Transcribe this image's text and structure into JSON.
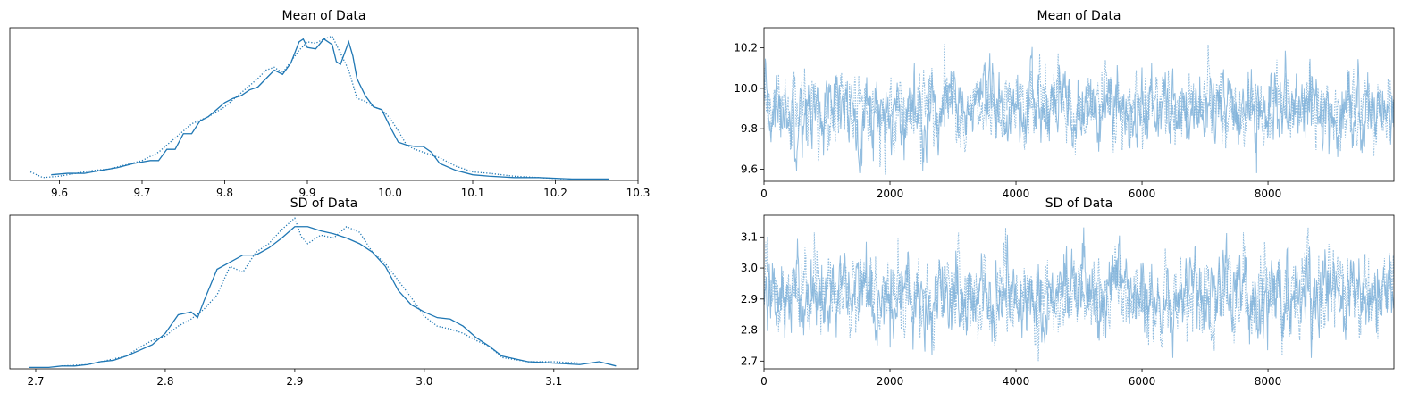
{
  "colors": {
    "line": "#1f77b4",
    "trace": "#7fb2d9",
    "axis": "#000000"
  },
  "chart_data": [
    {
      "id": "kde-mean",
      "type": "line",
      "title": "Mean of Data",
      "xlabel": "",
      "ylabel": "",
      "xlim": [
        9.54,
        10.3
      ],
      "ylim": [
        0,
        1.08
      ],
      "xticks": [
        9.6,
        9.7,
        9.8,
        9.9,
        10.0,
        10.1,
        10.2,
        10.3
      ],
      "xtick_labels": [
        "9.6",
        "9.7",
        "9.8",
        "9.9",
        "10.0",
        "10.1",
        "10.2",
        "10.3"
      ],
      "yticks_visible": false,
      "grid": false,
      "series": [
        {
          "style": "solid",
          "x": [
            9.59,
            9.61,
            9.63,
            9.65,
            9.67,
            9.69,
            9.71,
            9.72,
            9.73,
            9.74,
            9.75,
            9.76,
            9.77,
            9.78,
            9.79,
            9.8,
            9.81,
            9.82,
            9.83,
            9.84,
            9.85,
            9.86,
            9.87,
            9.88,
            9.89,
            9.895,
            9.9,
            9.91,
            9.92,
            9.93,
            9.935,
            9.94,
            9.95,
            9.955,
            9.96,
            9.97,
            9.98,
            9.99,
            10.0,
            10.01,
            10.02,
            10.03,
            10.04,
            10.05,
            10.06,
            10.08,
            10.1,
            10.12,
            10.15,
            10.18,
            10.22,
            10.265
          ],
          "y": [
            0.04,
            0.05,
            0.05,
            0.07,
            0.09,
            0.12,
            0.14,
            0.14,
            0.22,
            0.22,
            0.33,
            0.33,
            0.42,
            0.45,
            0.5,
            0.55,
            0.58,
            0.6,
            0.64,
            0.66,
            0.72,
            0.78,
            0.75,
            0.83,
            0.98,
            1.0,
            0.94,
            0.93,
            1.0,
            0.96,
            0.84,
            0.82,
            0.98,
            0.88,
            0.72,
            0.6,
            0.52,
            0.5,
            0.38,
            0.27,
            0.25,
            0.24,
            0.24,
            0.2,
            0.12,
            0.07,
            0.04,
            0.03,
            0.02,
            0.02,
            0.01,
            0.01
          ]
        },
        {
          "style": "dotted",
          "x": [
            9.565,
            9.58,
            9.6,
            9.62,
            9.64,
            9.66,
            9.68,
            9.7,
            9.72,
            9.74,
            9.76,
            9.78,
            9.8,
            9.82,
            9.84,
            9.85,
            9.86,
            9.87,
            9.88,
            9.89,
            9.9,
            9.91,
            9.92,
            9.93,
            9.94,
            9.95,
            9.96,
            9.97,
            9.98,
            9.99,
            10.0,
            10.01,
            10.02,
            10.03,
            10.04,
            10.05,
            10.06,
            10.08,
            10.1,
            10.12,
            10.15,
            10.18,
            10.21
          ],
          "y": [
            0.06,
            0.02,
            0.03,
            0.05,
            0.07,
            0.08,
            0.11,
            0.14,
            0.2,
            0.3,
            0.4,
            0.45,
            0.52,
            0.62,
            0.72,
            0.78,
            0.8,
            0.76,
            0.84,
            0.92,
            0.98,
            0.97,
            1.0,
            1.02,
            0.9,
            0.78,
            0.58,
            0.56,
            0.52,
            0.5,
            0.44,
            0.35,
            0.25,
            0.22,
            0.2,
            0.18,
            0.16,
            0.1,
            0.06,
            0.05,
            0.03,
            0.02,
            0.01
          ]
        }
      ]
    },
    {
      "id": "trace-mean",
      "type": "line",
      "title": "Mean of Data",
      "xlabel": "",
      "ylabel": "",
      "xlim": [
        0,
        9999
      ],
      "ylim": [
        9.54,
        10.3
      ],
      "xticks": [
        0,
        2000,
        4000,
        6000,
        8000
      ],
      "xtick_labels": [
        "0",
        "2000",
        "4000",
        "6000",
        "8000"
      ],
      "yticks": [
        9.6,
        9.8,
        10.0,
        10.2
      ],
      "ytick_labels": [
        "9.6",
        "9.8",
        "10.0",
        "10.2"
      ],
      "grid": false,
      "series": [
        {
          "style": "solid",
          "n": 10000,
          "mean": 9.89,
          "sd": 0.09,
          "min": 9.58,
          "max": 10.26
        },
        {
          "style": "dotted",
          "n": 10000,
          "mean": 9.89,
          "sd": 0.09,
          "min": 9.56,
          "max": 10.22
        }
      ]
    },
    {
      "id": "kde-sd",
      "type": "line",
      "title": "SD of Data",
      "xlabel": "",
      "ylabel": "",
      "xlim": [
        2.68,
        3.165
      ],
      "ylim": [
        0,
        1.08
      ],
      "xticks": [
        2.7,
        2.8,
        2.9,
        3.0,
        3.1
      ],
      "xtick_labels": [
        "2.7",
        "2.8",
        "2.9",
        "3.0",
        "3.1"
      ],
      "yticks_visible": false,
      "grid": false,
      "series": [
        {
          "style": "solid",
          "x": [
            2.695,
            2.71,
            2.72,
            2.73,
            2.74,
            2.75,
            2.76,
            2.77,
            2.78,
            2.79,
            2.8,
            2.81,
            2.82,
            2.825,
            2.83,
            2.84,
            2.85,
            2.86,
            2.87,
            2.88,
            2.89,
            2.9,
            2.91,
            2.92,
            2.93,
            2.94,
            2.95,
            2.96,
            2.97,
            2.98,
            2.99,
            3.0,
            3.01,
            3.02,
            3.03,
            3.04,
            3.05,
            3.06,
            3.08,
            3.1,
            3.12,
            3.135,
            3.148
          ],
          "y": [
            0.01,
            0.01,
            0.02,
            0.02,
            0.03,
            0.05,
            0.06,
            0.09,
            0.13,
            0.17,
            0.25,
            0.38,
            0.4,
            0.36,
            0.48,
            0.7,
            0.75,
            0.8,
            0.8,
            0.85,
            0.92,
            1.0,
            1.0,
            0.97,
            0.95,
            0.92,
            0.88,
            0.82,
            0.72,
            0.55,
            0.45,
            0.4,
            0.36,
            0.35,
            0.3,
            0.22,
            0.16,
            0.09,
            0.05,
            0.04,
            0.03,
            0.05,
            0.02
          ]
        },
        {
          "style": "dotted",
          "x": [
            2.72,
            2.74,
            2.76,
            2.77,
            2.78,
            2.79,
            2.8,
            2.81,
            2.82,
            2.83,
            2.84,
            2.85,
            2.86,
            2.87,
            2.88,
            2.89,
            2.9,
            2.905,
            2.91,
            2.92,
            2.93,
            2.94,
            2.95,
            2.96,
            2.97,
            2.98,
            2.99,
            3.0,
            3.01,
            3.02,
            3.03,
            3.04,
            3.05,
            3.06,
            3.08,
            3.1,
            3.12
          ],
          "y": [
            0.02,
            0.03,
            0.07,
            0.09,
            0.15,
            0.2,
            0.23,
            0.3,
            0.35,
            0.42,
            0.52,
            0.72,
            0.68,
            0.82,
            0.88,
            0.98,
            1.06,
            0.93,
            0.88,
            0.94,
            0.92,
            1.0,
            0.96,
            0.82,
            0.74,
            0.62,
            0.5,
            0.37,
            0.3,
            0.28,
            0.25,
            0.2,
            0.16,
            0.08,
            0.05,
            0.05,
            0.04
          ]
        }
      ]
    },
    {
      "id": "trace-sd",
      "type": "line",
      "title": "SD of Data",
      "xlabel": "",
      "ylabel": "",
      "xlim": [
        0,
        9999
      ],
      "ylim": [
        2.675,
        3.17
      ],
      "xticks": [
        0,
        2000,
        4000,
        6000,
        8000
      ],
      "xtick_labels": [
        "0",
        "2000",
        "4000",
        "6000",
        "8000"
      ],
      "yticks": [
        2.7,
        2.8,
        2.9,
        3.0,
        3.1
      ],
      "ytick_labels": [
        "2.7",
        "2.8",
        "2.9",
        "3.0",
        "3.1"
      ],
      "grid": false,
      "series": [
        {
          "style": "solid",
          "n": 10000,
          "mean": 2.91,
          "sd": 0.065,
          "min": 2.71,
          "max": 3.15
        },
        {
          "style": "dotted",
          "n": 10000,
          "mean": 2.91,
          "sd": 0.065,
          "min": 2.7,
          "max": 3.13
        }
      ]
    }
  ]
}
